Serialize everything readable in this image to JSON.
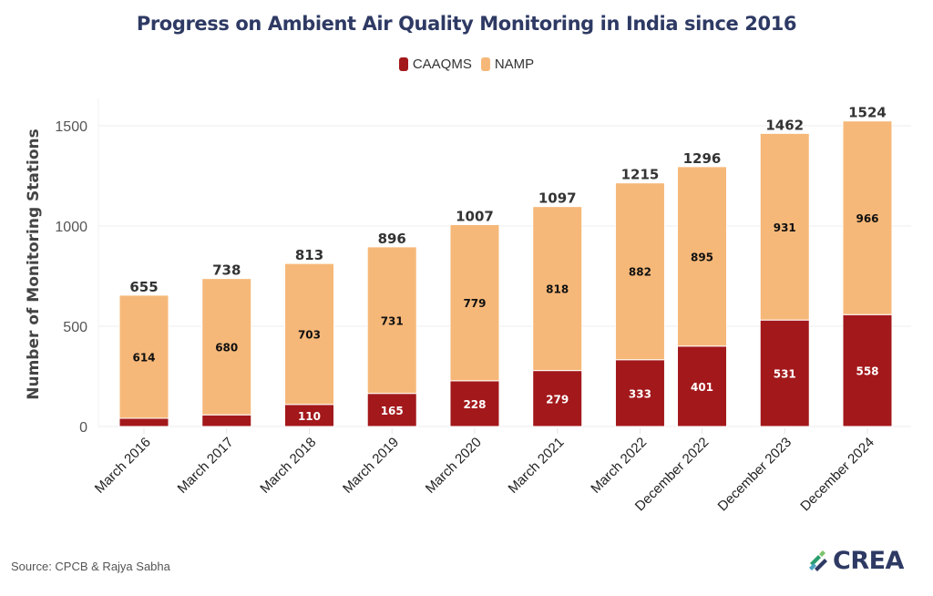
{
  "title": "Progress on Ambient Air Quality Monitoring in India since 2016",
  "legend": [
    {
      "name": "CAAQMS",
      "color": "#a3181b"
    },
    {
      "name": "NAMP",
      "color": "#f6b879"
    }
  ],
  "source": "Source: CPCB & Rajya Sabha",
  "logo": {
    "text": "CREA",
    "icon": "crea-logo-icon"
  },
  "chart_data": {
    "type": "bar",
    "stacked": true,
    "title": "Progress on Ambient Air Quality Monitoring in India since 2016",
    "xlabel": "",
    "ylabel": "Number of Monitoring Stations",
    "ylim": [
      0,
      1600
    ],
    "yticks": [
      0,
      500,
      1000,
      1500
    ],
    "grid": true,
    "legend_position": "top-center",
    "categories": [
      "March 2016",
      "March 2017",
      "March 2018",
      "March 2019",
      "March 2020",
      "March 2021",
      "March 2022",
      "December 2022",
      "December 2023",
      "December 2024"
    ],
    "time_positions_years": [
      2016.17,
      2017.17,
      2018.17,
      2019.17,
      2020.17,
      2021.17,
      2022.17,
      2022.92,
      2023.92,
      2024.92
    ],
    "series": [
      {
        "name": "CAAQMS",
        "color": "#a3181b",
        "values": [
          41,
          58,
          110,
          165,
          228,
          279,
          333,
          401,
          531,
          558
        ],
        "labels": [
          "",
          "",
          "110",
          "165",
          "228",
          "279",
          "333",
          "401",
          "531",
          "558"
        ]
      },
      {
        "name": "NAMP",
        "color": "#f6b879",
        "values": [
          614,
          680,
          703,
          731,
          779,
          818,
          882,
          895,
          931,
          966
        ],
        "labels": [
          "614",
          "680",
          "703",
          "731",
          "779",
          "818",
          "882",
          "895",
          "931",
          "966"
        ]
      }
    ],
    "totals": [
      655,
      738,
      813,
      896,
      1007,
      1097,
      1215,
      1296,
      1462,
      1524
    ]
  }
}
